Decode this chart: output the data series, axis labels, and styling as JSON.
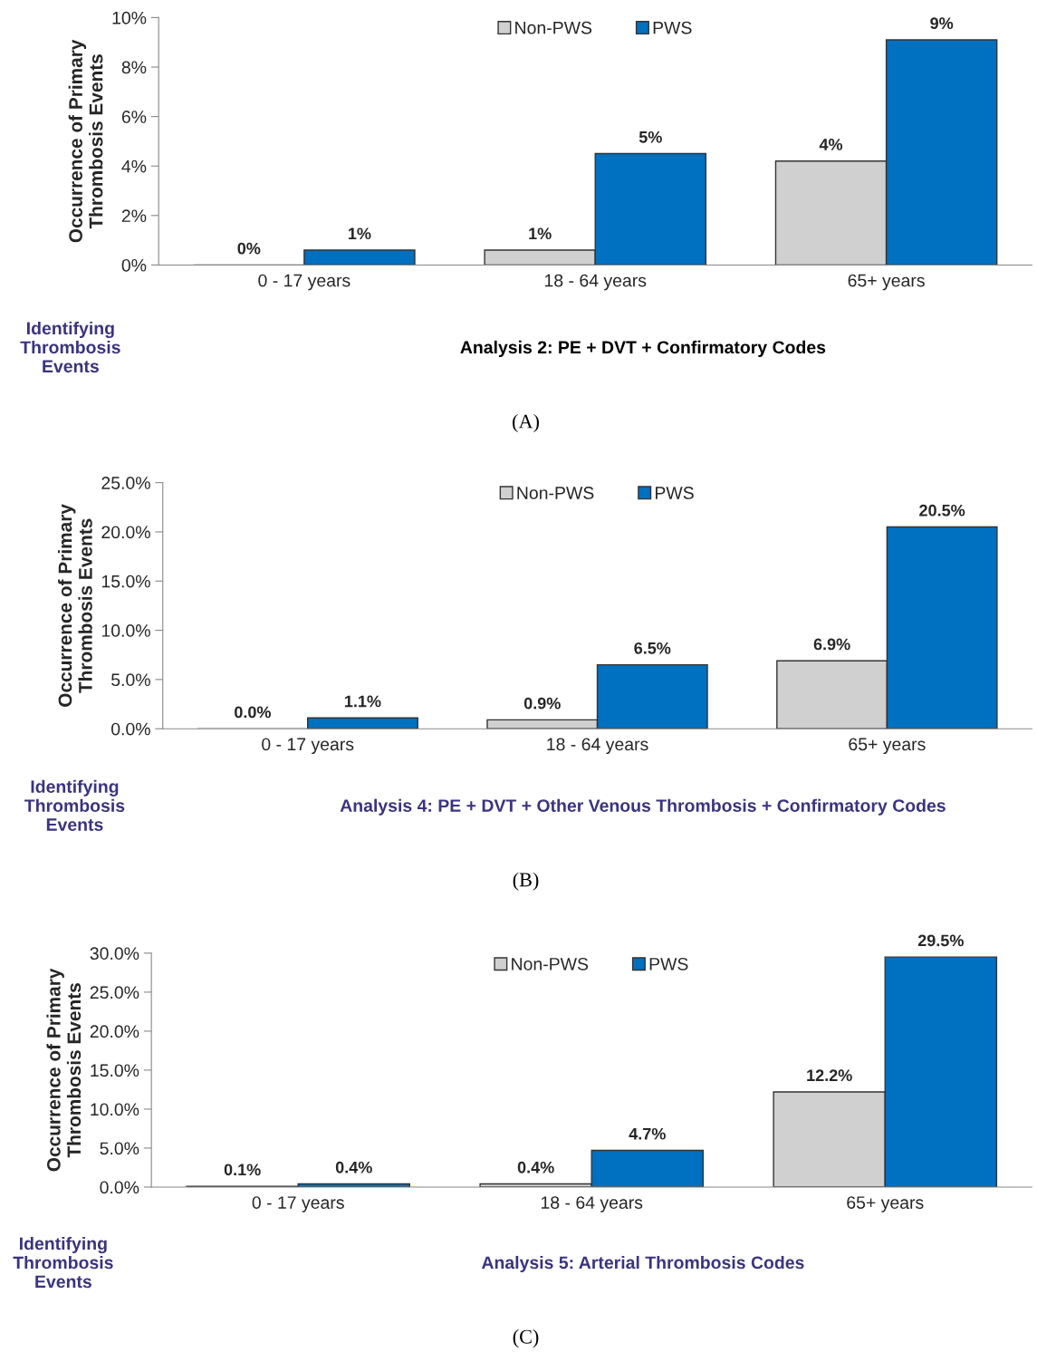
{
  "chart_data": [
    {
      "type": "bar",
      "ylabel": "Occurrence of Primary\nThrombosis Events",
      "categories": [
        "0 - 17 years",
        "18 - 64 years",
        "65+ years"
      ],
      "series": [
        {
          "name": "Non-PWS",
          "color": "#d0d0d0",
          "values": [
            0,
            0.6,
            4.2
          ],
          "value_labels": [
            "0%",
            "1%",
            "4%"
          ]
        },
        {
          "name": "PWS",
          "color": "#0070c0",
          "values": [
            0.6,
            4.5,
            9.1
          ],
          "value_labels": [
            "1%",
            "5%",
            "9%"
          ]
        }
      ],
      "ylim": [
        0,
        10
      ],
      "yticks": [
        {
          "value": 0,
          "label": "0%"
        },
        {
          "value": 2,
          "label": "2%"
        },
        {
          "value": 4,
          "label": "4%"
        },
        {
          "value": 6,
          "label": "6%"
        },
        {
          "value": 8,
          "label": "8%"
        },
        {
          "value": 10,
          "label": "10%"
        }
      ],
      "grid": false,
      "legend": "top",
      "annotations": [
        "Identifying\nThrombosis\nEvents",
        "Analysis 2: PE + DVT + Confirmatory Codes",
        "(A)"
      ]
    },
    {
      "type": "bar",
      "ylabel": "Occurrence of Primary\nThrombosis Events",
      "categories": [
        "0 - 17 years",
        "18 - 64 years",
        "65+ years"
      ],
      "series": [
        {
          "name": "Non-PWS",
          "color": "#d0d0d0",
          "values": [
            0.0,
            0.9,
            6.9
          ],
          "value_labels": [
            "0.0%",
            "0.9%",
            "6.9%"
          ]
        },
        {
          "name": "PWS",
          "color": "#0070c0",
          "values": [
            1.1,
            6.5,
            20.5
          ],
          "value_labels": [
            "1.1%",
            "6.5%",
            "20.5%"
          ]
        }
      ],
      "ylim": [
        0,
        25
      ],
      "yticks": [
        {
          "value": 0,
          "label": "0.0%"
        },
        {
          "value": 5,
          "label": "5.0%"
        },
        {
          "value": 10,
          "label": "10.0%"
        },
        {
          "value": 15,
          "label": "15.0%"
        },
        {
          "value": 20,
          "label": "20.0%"
        },
        {
          "value": 25,
          "label": "25.0%"
        }
      ],
      "grid": false,
      "legend": "top",
      "annotations": [
        "Identifying\nThrombosis\nEvents",
        "Analysis 4: PE + DVT + Other Venous Thrombosis + Confirmatory Codes",
        "(B)"
      ]
    },
    {
      "type": "bar",
      "ylabel": "Occurrence of Primary\nThrombosis Events",
      "categories": [
        "0 - 17 years",
        "18 - 64 years",
        "65+ years"
      ],
      "series": [
        {
          "name": "Non-PWS",
          "color": "#d0d0d0",
          "values": [
            0.1,
            0.4,
            12.2
          ],
          "value_labels": [
            "0.1%",
            "0.4%",
            "12.2%"
          ]
        },
        {
          "name": "PWS",
          "color": "#0070c0",
          "values": [
            0.4,
            4.7,
            29.5
          ],
          "value_labels": [
            "0.4%",
            "4.7%",
            "29.5%"
          ]
        }
      ],
      "ylim": [
        0,
        30
      ],
      "yticks": [
        {
          "value": 0,
          "label": "0.0%"
        },
        {
          "value": 5,
          "label": "5.0%"
        },
        {
          "value": 10,
          "label": "10.0%"
        },
        {
          "value": 15,
          "label": "15.0%"
        },
        {
          "value": 20,
          "label": "20.0%"
        },
        {
          "value": 25,
          "label": "25.0%"
        },
        {
          "value": 30,
          "label": "30.0%"
        }
      ],
      "grid": false,
      "legend": "top",
      "annotations": [
        "Identifying\nThrombosis\nEvents",
        "Analysis 5: Arterial Thrombosis Codes",
        "(C)"
      ]
    }
  ]
}
